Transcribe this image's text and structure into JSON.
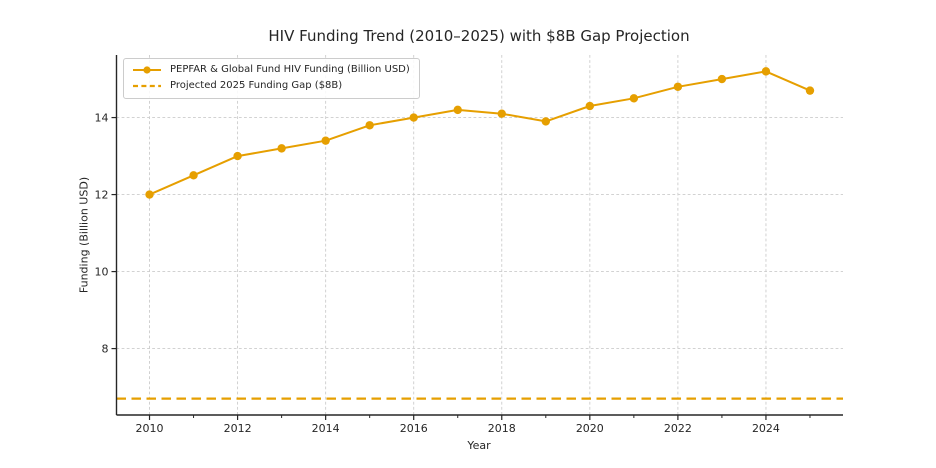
{
  "chart_data": {
    "type": "line",
    "title": "HIV Funding Trend (2010–2025) with $8B Gap Projection",
    "xlabel": "Year",
    "ylabel": "Funding (Billion USD)",
    "x": [
      2010,
      2011,
      2012,
      2013,
      2014,
      2015,
      2016,
      2017,
      2018,
      2019,
      2020,
      2021,
      2022,
      2023,
      2024,
      2025
    ],
    "series": [
      {
        "name": "PEPFAR & Global Fund HIV Funding (Billion USD)",
        "type": "line",
        "line_style": "solid",
        "marker": "circle",
        "values": [
          12.0,
          12.5,
          13.0,
          13.2,
          13.4,
          13.8,
          14.0,
          14.2,
          14.1,
          13.9,
          14.3,
          14.5,
          14.8,
          15.0,
          15.2,
          14.7
        ]
      },
      {
        "name": "Projected 2025 Funding Gap ($8B)",
        "type": "hline",
        "line_style": "dashed",
        "value": 6.7
      }
    ],
    "xlim": [
      2009.25,
      2025.75
    ],
    "ylim": [
      6.275,
      15.625
    ],
    "xticks": [
      2010,
      2012,
      2014,
      2016,
      2018,
      2020,
      2022,
      2024
    ],
    "xticks_minor": [
      2011,
      2013,
      2015,
      2017,
      2019,
      2021,
      2023,
      2025
    ],
    "yticks": [
      8,
      10,
      12,
      14
    ],
    "grid": true,
    "legend_position": "upper left",
    "colors": {
      "series": "#E69F00",
      "grid": "#cccccc",
      "axis": "#262626",
      "text": "#262626"
    }
  }
}
